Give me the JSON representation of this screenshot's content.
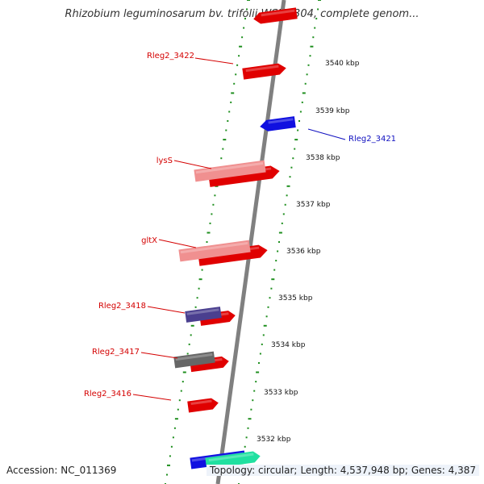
{
  "title": "Rhizobium leguminosarum bv. trifolii WSM2304, complete genom...",
  "footer": {
    "accession": "Accession: NC_011369",
    "topology_label": "Topology: circular;",
    "length_label": "Length: 4,537,948 bp;",
    "genes_label": "Genes: 4,387"
  },
  "colors": {
    "background": "#ffffff",
    "backbone": "#808080",
    "tick_marks": "#1f8f1f",
    "forward_gene": "#e00000",
    "reverse_gene": "#1010e0",
    "rna_gene": "#f09090",
    "other_gene_dark": "#4a3f8f",
    "other_gene_gray": "#666666",
    "other_gene_teal": "#20e0a0",
    "label_red": "#d40000",
    "label_blue": "#1010c0"
  },
  "ruler": {
    "unit": "kbp",
    "labels": [
      "3532 kbp",
      "3533 kbp",
      "3534 kbp",
      "3535 kbp",
      "3536 kbp",
      "3537 kbp",
      "3538 kbp",
      "3539 kbp",
      "3540 kbp"
    ]
  },
  "gene_labels": [
    {
      "name": "Rleg2_3422",
      "color": "red"
    },
    {
      "name": "lysS",
      "color": "red"
    },
    {
      "name": "gltX",
      "color": "red"
    },
    {
      "name": "Rleg2_3418",
      "color": "red"
    },
    {
      "name": "Rleg2_3417",
      "color": "red"
    },
    {
      "name": "Rleg2_3416",
      "color": "red"
    },
    {
      "name": "Rleg2_3421",
      "color": "blue"
    }
  ]
}
